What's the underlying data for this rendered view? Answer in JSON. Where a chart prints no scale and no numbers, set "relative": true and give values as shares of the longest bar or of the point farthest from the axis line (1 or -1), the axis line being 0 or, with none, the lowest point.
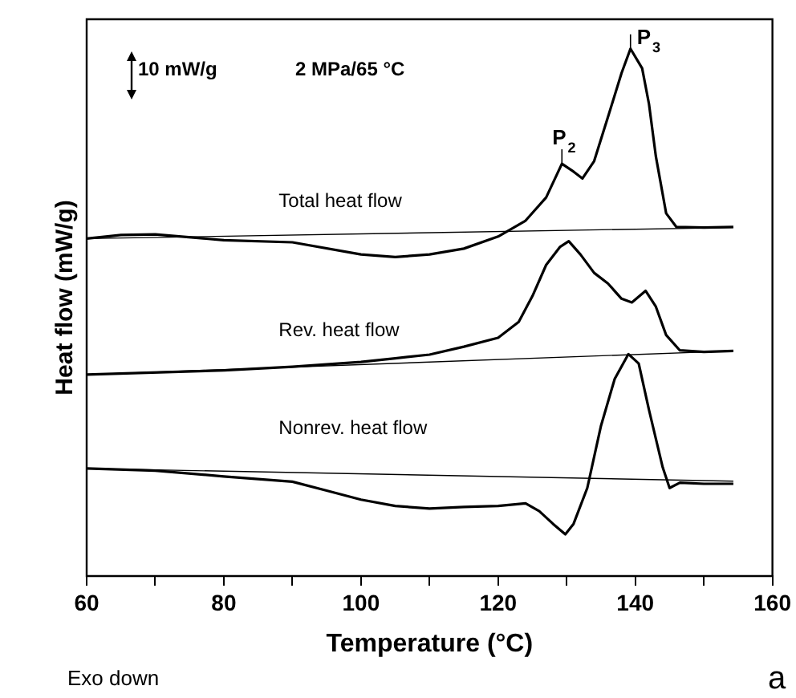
{
  "chart_data": {
    "type": "line",
    "xlabel": "Temperature (°C)",
    "ylabel": "Heat flow (mW/g)",
    "relative": true,
    "grid": false,
    "legend": false,
    "marker": "none",
    "line_style": "solid",
    "tick_labels": "x",
    "xlim": [
      60,
      160
    ],
    "xticks": [
      60,
      {
        "value": 70,
        "label": null
      },
      80,
      {
        "value": 90,
        "label": null
      },
      100,
      {
        "value": 110,
        "label": null
      },
      120,
      {
        "value": 130,
        "label": null
      },
      140,
      {
        "value": 150,
        "label": null
      },
      160
    ],
    "series": [
      {
        "name": "Total heat flow",
        "color": "#000000",
        "x": [
          60,
          65,
          70,
          80,
          90,
          100,
          105,
          110,
          115,
          120,
          124,
          127,
          129.3,
          131,
          132.3,
          134,
          136,
          138,
          139.3,
          141,
          142,
          143,
          144.5,
          146,
          150,
          154.3
        ],
        "values": [
          0.64,
          0.647,
          0.648,
          0.637,
          0.633,
          0.61,
          0.605,
          0.61,
          0.621,
          0.644,
          0.674,
          0.718,
          0.782,
          0.767,
          0.754,
          0.787,
          0.87,
          0.954,
          1,
          0.963,
          0.895,
          0.796,
          0.688,
          0.662,
          0.661,
          0.662
        ]
      },
      {
        "color": "#000000",
        "x": [
          60,
          154.3
        ],
        "values": [
          0.64,
          0.661
        ]
      },
      {
        "name": "Rev. heat flow",
        "color": "#000000",
        "x": [
          60,
          80,
          90,
          100,
          105,
          110,
          115,
          120,
          123,
          125,
          127,
          129,
          130.3,
          132,
          134,
          136,
          138,
          139.5,
          141.5,
          143,
          144.5,
          146.5,
          150,
          154.3
        ],
        "values": [
          0.382,
          0.39,
          0.397,
          0.406,
          0.413,
          0.42,
          0.435,
          0.452,
          0.482,
          0.531,
          0.59,
          0.624,
          0.635,
          0.61,
          0.575,
          0.555,
          0.526,
          0.519,
          0.541,
          0.511,
          0.457,
          0.428,
          0.425,
          0.427
        ]
      },
      {
        "color": "#000000",
        "x": [
          60,
          154.3
        ],
        "values": [
          0.382,
          0.427
        ]
      },
      {
        "name": "Nonrev. heat flow",
        "color": "#000000",
        "x": [
          60,
          70,
          80,
          90,
          95,
          100,
          105,
          110,
          115,
          120,
          124,
          126,
          128,
          129.8,
          131,
          133,
          135,
          137,
          139,
          140.5,
          142,
          144,
          145,
          146.5,
          150,
          154.3
        ],
        "values": [
          0.204,
          0.2,
          0.189,
          0.179,
          0.162,
          0.145,
          0.133,
          0.128,
          0.131,
          0.133,
          0.138,
          0.123,
          0.099,
          0.079,
          0.099,
          0.167,
          0.285,
          0.374,
          0.421,
          0.403,
          0.315,
          0.206,
          0.167,
          0.177,
          0.175,
          0.175
        ]
      },
      {
        "color": "#000000",
        "x": [
          60,
          154.3
        ],
        "values": [
          0.204,
          0.18
        ]
      }
    ],
    "annotations": [
      "10 mW/g",
      "2 MPa/65 °C",
      {
        "text": "P$_{2}$",
        "x": 129.3,
        "y": 0.782
      },
      {
        "text": "P$_{3}$",
        "x": 139.3,
        "y": 1
      },
      "Exo down",
      "a"
    ]
  }
}
